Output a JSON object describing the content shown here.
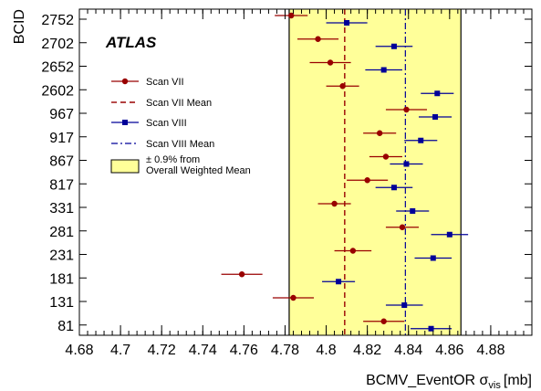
{
  "chart_data": {
    "type": "scatter",
    "experiment_label": "ATLAS",
    "xlabel": "BCMV_EventOR σ",
    "xlabel_sub": "vis",
    "xlabel_unit": "[mb]",
    "ylabel": "BCID",
    "xlim": [
      4.68,
      4.9
    ],
    "x_ticks": [
      "4.68",
      "4.7",
      "4.72",
      "4.74",
      "4.76",
      "4.78",
      "4.8",
      "4.82",
      "4.84",
      "4.86",
      "4.88"
    ],
    "categories": [
      "81",
      "131",
      "181",
      "231",
      "281",
      "331",
      "817",
      "867",
      "917",
      "967",
      "2602",
      "2652",
      "2702",
      "2752"
    ],
    "band": {
      "center": 4.8235,
      "low": 4.782,
      "high": 4.8655,
      "color": "#ffff99"
    },
    "series": [
      {
        "name": "Scan VII",
        "marker": "circle",
        "color": "#990000",
        "mean": 4.809,
        "values": [
          4.828,
          4.784,
          4.759,
          4.813,
          4.837,
          4.804,
          4.82,
          4.829,
          4.826,
          4.839,
          4.808,
          4.802,
          4.796,
          4.783
        ],
        "errors": [
          0.01,
          0.01,
          0.01,
          0.009,
          0.008,
          0.008,
          0.01,
          0.008,
          0.008,
          0.01,
          0.008,
          0.01,
          0.01,
          0.008
        ]
      },
      {
        "name": "Scan VIII",
        "marker": "square",
        "color": "#000099",
        "mean": 4.8385,
        "values": [
          4.851,
          4.838,
          4.806,
          4.852,
          4.86,
          4.842,
          4.833,
          4.839,
          4.846,
          4.853,
          4.854,
          4.828,
          4.833,
          4.81
        ],
        "errors": [
          0.01,
          0.009,
          0.008,
          0.009,
          0.009,
          0.008,
          0.009,
          0.008,
          0.008,
          0.008,
          0.008,
          0.009,
          0.009,
          0.01
        ]
      }
    ],
    "legend": {
      "placement": "top-left",
      "items": [
        {
          "label": "Scan VII",
          "kind": "circle",
          "color": "#990000"
        },
        {
          "label": "Scan VII Mean",
          "kind": "dashed",
          "color": "#990000"
        },
        {
          "label": "Scan VIII",
          "kind": "square",
          "color": "#000099"
        },
        {
          "label": "Scan VIII Mean",
          "kind": "dashdot",
          "color": "#000099"
        },
        {
          "label": "± 0.9% from\nOverall Weighted Mean",
          "kind": "box",
          "color": "#ffff99"
        }
      ]
    }
  }
}
